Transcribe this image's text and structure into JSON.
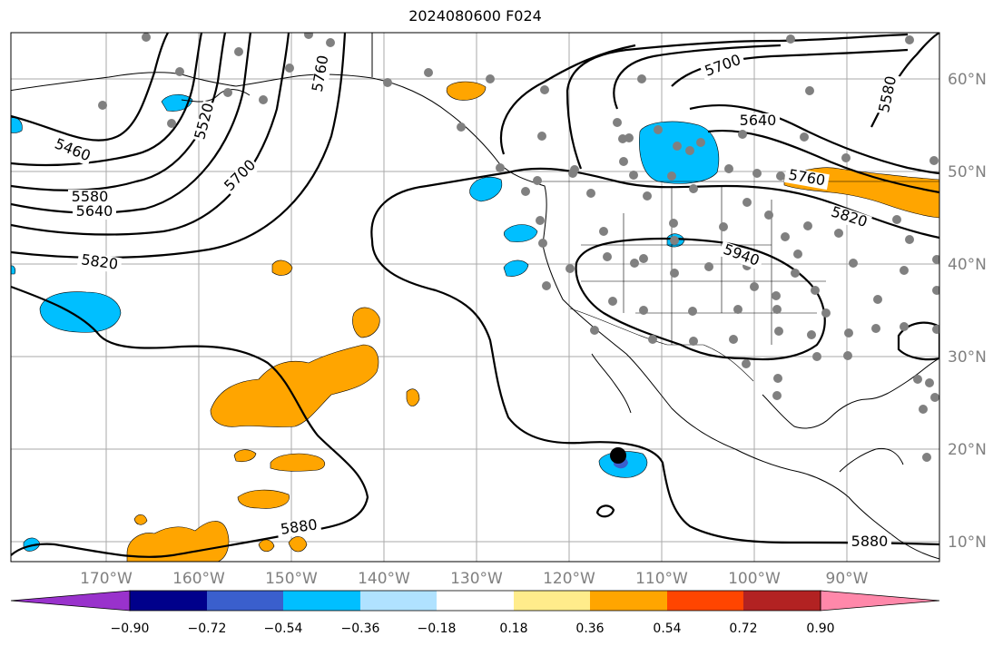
{
  "title": "2024080600 F024",
  "longitude_labels": [
    "170°W",
    "160°W",
    "150°W",
    "140°W",
    "130°W",
    "120°W",
    "110°W",
    "100°W",
    "90°W"
  ],
  "latitude_labels": [
    "60°N",
    "50°N",
    "40°N",
    "30°N",
    "20°N",
    "10°N"
  ],
  "contour_labels": [
    "5460",
    "5520",
    "5580",
    "5640",
    "5700",
    "5760",
    "5820",
    "5880",
    "5940"
  ],
  "contour_label_instances": [
    {
      "text": "5460"
    },
    {
      "text": "5520"
    },
    {
      "text": "5580"
    },
    {
      "text": "5640"
    },
    {
      "text": "5700"
    },
    {
      "text": "5760"
    },
    {
      "text": "5820"
    },
    {
      "text": "5700"
    },
    {
      "text": "5640"
    },
    {
      "text": "5580"
    },
    {
      "text": "5760"
    },
    {
      "text": "5820"
    },
    {
      "text": "5940"
    },
    {
      "text": "5880"
    },
    {
      "text": "5880"
    }
  ],
  "colorbar": {
    "tick_labels": [
      "−0.90",
      "−0.72",
      "−0.54",
      "−0.36",
      "−0.18",
      "0.18",
      "0.36",
      "0.54",
      "0.72",
      "0.90"
    ],
    "colors": [
      "#9932cc",
      "#00008b",
      "#3a5fcd",
      "#00bfff",
      "#b0e2ff",
      "#ffffff",
      "#ffec8b",
      "#ffa500",
      "#ff4500",
      "#b22222",
      "#ff88aa"
    ]
  },
  "colors": {
    "positive_fill": "#ffa500",
    "negative_fill": "#00bfff",
    "station_marker": "#808080",
    "axis_label": "#808080",
    "grid": "#aaaaaa"
  }
}
